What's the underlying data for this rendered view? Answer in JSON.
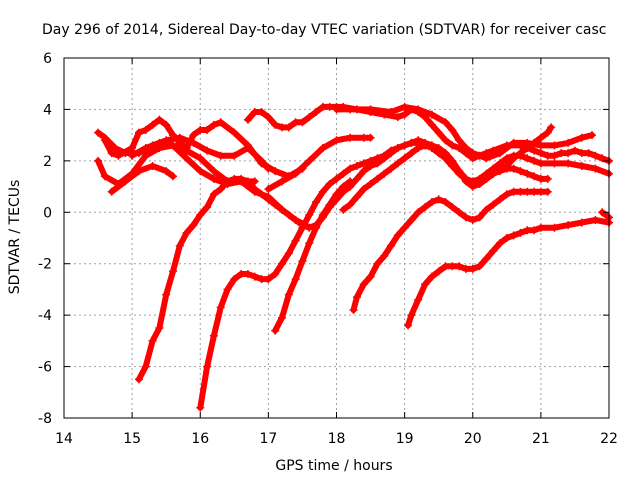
{
  "chart_data": {
    "type": "scatter",
    "title": "Day 296 of 2014, Sidereal Day-to-day VTEC variation (SDTVAR) for receiver casc",
    "xlabel": "GPS time / hours",
    "ylabel": "SDTVAR / TECUs",
    "xlim": [
      14,
      22
    ],
    "ylim": [
      -8,
      6
    ],
    "xticks": [
      14,
      15,
      16,
      17,
      18,
      19,
      20,
      21,
      22
    ],
    "yticks": [
      -8,
      -6,
      -4,
      -2,
      0,
      2,
      4,
      6
    ],
    "grid": true,
    "marker": "+",
    "color": "#ff0000",
    "series": [
      {
        "name": "s1",
        "x": [
          14.5,
          14.6,
          14.75,
          14.9,
          15.1,
          15.3,
          15.5,
          15.7,
          15.9,
          16.1,
          16.3,
          16.5,
          16.7,
          16.9,
          17.0
        ],
        "y": [
          3.1,
          2.9,
          2.5,
          2.3,
          2.3,
          2.6,
          2.8,
          2.9,
          2.7,
          2.4,
          2.2,
          2.2,
          2.5,
          2.0,
          1.7
        ]
      },
      {
        "name": "s2",
        "x": [
          14.5,
          14.6,
          14.8,
          15.0,
          15.2,
          15.4,
          15.6,
          15.8,
          16.0,
          16.2,
          16.4,
          16.6,
          16.8
        ],
        "y": [
          2.0,
          1.4,
          1.1,
          1.5,
          2.2,
          2.5,
          2.6,
          2.4,
          2.1,
          1.6,
          1.2,
          1.2,
          1.2
        ]
      },
      {
        "name": "s3",
        "x": [
          14.7,
          14.9,
          15.1,
          15.3,
          15.5,
          15.6
        ],
        "y": [
          0.8,
          1.2,
          1.6,
          1.8,
          1.6,
          1.4
        ]
      },
      {
        "name": "s4",
        "x": [
          14.6,
          14.7,
          14.8,
          15.0,
          15.1,
          15.2,
          15.3,
          15.4,
          15.5,
          15.6,
          15.7,
          15.8,
          15.9,
          16.0,
          16.1,
          16.2,
          16.3,
          16.5,
          16.7,
          16.9,
          17.1,
          17.3,
          17.5
        ],
        "y": [
          2.8,
          2.3,
          2.2,
          2.5,
          3.1,
          3.2,
          3.4,
          3.6,
          3.4,
          3.0,
          2.7,
          2.5,
          3.0,
          3.2,
          3.2,
          3.4,
          3.5,
          3.1,
          2.6,
          1.9,
          1.6,
          1.4,
          1.7
        ]
      },
      {
        "name": "s5",
        "x": [
          15.0,
          15.2,
          15.4,
          15.6,
          15.8,
          16.0,
          16.2,
          16.4,
          16.6,
          16.8,
          17.0,
          17.2,
          17.4,
          17.55
        ],
        "y": [
          2.2,
          2.5,
          2.7,
          2.6,
          2.1,
          1.6,
          1.3,
          1.1,
          1.2,
          0.8,
          0.6,
          0.1,
          -0.3,
          -0.5
        ]
      },
      {
        "name": "s6",
        "x": [
          16.7,
          16.8,
          16.9,
          17.0,
          17.1,
          17.2,
          17.3,
          17.4,
          17.5,
          17.6,
          17.7,
          17.8,
          17.9,
          18.0,
          18.1,
          18.3,
          18.5,
          18.7,
          18.9,
          19.0,
          19.1,
          19.2,
          19.3,
          19.4,
          19.5,
          19.6,
          19.7,
          19.8,
          19.9,
          20.0,
          20.1,
          20.2,
          20.3,
          20.5,
          20.7,
          20.9,
          21.0,
          21.1,
          21.2,
          21.3,
          21.4,
          21.5,
          21.6,
          21.7,
          21.8,
          21.9,
          22.0
        ],
        "y": [
          3.6,
          3.9,
          3.9,
          3.7,
          3.4,
          3.3,
          3.3,
          3.5,
          3.5,
          3.7,
          3.9,
          4.1,
          4.1,
          4.1,
          4.1,
          4.0,
          3.9,
          3.8,
          3.7,
          3.8,
          4.0,
          3.9,
          3.7,
          3.4,
          3.1,
          2.8,
          2.6,
          2.5,
          2.3,
          2.1,
          2.2,
          2.3,
          2.4,
          2.6,
          2.6,
          2.4,
          2.3,
          2.2,
          2.2,
          2.3,
          2.3,
          2.4,
          2.3,
          2.3,
          2.2,
          2.1,
          2.0
        ]
      },
      {
        "name": "s7",
        "x": [
          17.0,
          17.2,
          17.4,
          17.6,
          17.8,
          18.0,
          18.2,
          18.4,
          18.5
        ],
        "y": [
          0.9,
          1.2,
          1.5,
          2.0,
          2.5,
          2.8,
          2.9,
          2.9,
          2.9
        ]
      },
      {
        "name": "s8",
        "x": [
          18.0,
          18.2,
          18.5,
          18.8,
          19.0,
          19.2,
          19.4,
          19.6,
          19.7,
          19.8,
          19.9,
          20.0,
          20.2,
          20.4,
          20.6,
          20.8,
          21.0,
          21.2,
          21.4,
          21.6,
          21.75
        ],
        "y": [
          4.0,
          4.0,
          4.0,
          3.9,
          4.1,
          4.0,
          3.8,
          3.5,
          3.2,
          2.8,
          2.5,
          2.3,
          2.1,
          2.3,
          2.7,
          2.7,
          2.6,
          2.6,
          2.7,
          2.9,
          3.0
        ]
      },
      {
        "name": "s9",
        "x": [
          15.1,
          15.2,
          15.3,
          15.4,
          15.5,
          15.6,
          15.7,
          15.8,
          15.9,
          16.0,
          16.1,
          16.2,
          16.3,
          16.4,
          16.5,
          16.6,
          16.7,
          16.8,
          16.9,
          17.0,
          17.1,
          17.2,
          17.3,
          17.4,
          17.5,
          17.6,
          17.7,
          17.8,
          17.9,
          18.0,
          18.1,
          18.2,
          18.3,
          18.4,
          18.5,
          18.6,
          18.7,
          18.8,
          18.9,
          19.0,
          19.1,
          19.2,
          19.3,
          19.4,
          19.5,
          19.6,
          19.7,
          19.8,
          19.9,
          20.0,
          20.1,
          20.2,
          20.3,
          20.4,
          20.5,
          20.6,
          20.7,
          20.8,
          20.9,
          21.0,
          21.1,
          21.15
        ],
        "y": [
          -6.5,
          -6.0,
          -5.0,
          -4.5,
          -3.2,
          -2.3,
          -1.3,
          -0.8,
          -0.5,
          -0.1,
          0.2,
          0.7,
          0.9,
          1.2,
          1.3,
          1.3,
          1.2,
          0.9,
          0.7,
          0.5,
          0.3,
          0.1,
          -0.1,
          -0.3,
          -0.5,
          -0.6,
          -0.5,
          -0.2,
          0.2,
          0.5,
          0.8,
          1.0,
          1.3,
          1.6,
          1.8,
          1.9,
          2.1,
          2.3,
          2.5,
          2.6,
          2.7,
          2.8,
          2.7,
          2.6,
          2.4,
          2.1,
          1.8,
          1.6,
          1.3,
          1.1,
          1.1,
          1.3,
          1.5,
          1.7,
          1.8,
          2.1,
          2.3,
          2.5,
          2.7,
          2.9,
          3.1,
          3.3
        ]
      },
      {
        "name": "s10",
        "x": [
          16.0,
          16.1,
          16.2,
          16.3,
          16.4,
          16.5,
          16.6,
          16.7,
          16.8,
          16.9,
          17.0,
          17.1,
          17.2,
          17.3,
          17.4,
          17.5,
          17.6,
          17.7,
          17.8,
          17.9,
          18.0,
          18.1,
          18.2,
          18.3,
          18.4,
          18.5,
          18.6,
          18.7,
          18.8,
          18.9,
          19.0,
          19.1,
          19.2,
          19.3,
          19.4,
          19.5,
          19.6,
          19.7,
          19.8,
          19.9,
          20.0,
          20.1,
          20.2,
          20.3,
          20.4,
          20.5,
          20.6,
          20.7,
          20.8,
          20.9,
          21.0,
          21.2,
          21.4,
          21.6,
          21.8,
          22.0
        ],
        "y": [
          -7.6,
          -6.0,
          -4.8,
          -3.7,
          -3.0,
          -2.6,
          -2.4,
          -2.4,
          -2.5,
          -2.6,
          -2.6,
          -2.4,
          -2.0,
          -1.6,
          -1.1,
          -0.6,
          -0.1,
          0.4,
          0.8,
          1.1,
          1.3,
          1.5,
          1.7,
          1.8,
          1.9,
          2.0,
          2.1,
          2.2,
          2.4,
          2.5,
          2.6,
          2.7,
          2.7,
          2.6,
          2.5,
          2.3,
          2.1,
          1.8,
          1.5,
          1.3,
          1.2,
          1.3,
          1.5,
          1.7,
          1.9,
          2.1,
          2.2,
          2.2,
          2.1,
          2.0,
          1.9,
          1.9,
          1.9,
          1.8,
          1.7,
          1.5
        ]
      },
      {
        "name": "s11",
        "x": [
          17.1,
          17.2,
          17.3,
          17.4,
          17.5,
          17.6,
          17.7,
          17.8,
          17.9,
          18.0,
          18.1,
          18.2
        ],
        "y": [
          -4.6,
          -4.1,
          -3.2,
          -2.6,
          -1.9,
          -1.2,
          -0.6,
          -0.1,
          0.3,
          0.7,
          1.0,
          1.2
        ]
      },
      {
        "name": "s12",
        "x": [
          18.1,
          18.2,
          18.3,
          18.4,
          18.5,
          18.6,
          18.7,
          18.8,
          18.9,
          19.0,
          19.1,
          19.2,
          19.3,
          19.4,
          19.5,
          19.6,
          19.7,
          19.8,
          19.9,
          20.0,
          20.1,
          20.2,
          20.3,
          20.4,
          20.5,
          20.6,
          20.7,
          20.8,
          20.9,
          21.0,
          21.1
        ],
        "y": [
          0.1,
          0.3,
          0.6,
          0.9,
          1.1,
          1.3,
          1.5,
          1.7,
          1.9,
          2.1,
          2.3,
          2.5,
          2.6,
          2.6,
          2.5,
          2.3,
          2.0,
          1.6,
          1.2,
          1.0,
          1.1,
          1.3,
          1.5,
          1.6,
          1.7,
          1.7,
          1.6,
          1.5,
          1.4,
          1.3,
          1.3
        ]
      },
      {
        "name": "s13",
        "x": [
          18.25,
          18.3,
          18.4,
          18.5,
          18.6,
          18.7,
          18.8,
          18.9,
          19.0,
          19.1,
          19.2,
          19.3,
          19.4,
          19.5,
          19.6,
          19.7,
          19.8,
          19.9,
          20.0,
          20.1,
          20.2,
          20.3,
          20.4,
          20.5,
          20.6,
          20.7,
          20.8,
          20.9,
          21.0,
          21.1
        ],
        "y": [
          -3.8,
          -3.3,
          -2.8,
          -2.5,
          -2.0,
          -1.7,
          -1.3,
          -0.9,
          -0.6,
          -0.3,
          0.0,
          0.2,
          0.4,
          0.5,
          0.4,
          0.2,
          0.0,
          -0.2,
          -0.3,
          -0.2,
          0.1,
          0.3,
          0.5,
          0.7,
          0.8,
          0.8,
          0.8,
          0.8,
          0.8,
          0.8
        ]
      },
      {
        "name": "s14",
        "x": [
          19.05,
          19.1,
          19.2,
          19.3,
          19.4,
          19.5,
          19.6,
          19.7,
          19.8,
          19.9,
          20.0,
          20.1,
          20.2,
          20.3,
          20.4,
          20.5,
          20.6,
          20.7,
          20.8,
          20.9,
          21.0,
          21.2,
          21.4,
          21.6,
          21.8,
          22.0
        ],
        "y": [
          -4.4,
          -4.0,
          -3.4,
          -2.8,
          -2.5,
          -2.3,
          -2.1,
          -2.1,
          -2.1,
          -2.2,
          -2.2,
          -2.1,
          -1.8,
          -1.5,
          -1.2,
          -1.0,
          -0.9,
          -0.8,
          -0.7,
          -0.7,
          -0.6,
          -0.6,
          -0.5,
          -0.4,
          -0.3,
          -0.4
        ]
      },
      {
        "name": "s15",
        "x": [
          21.9,
          22.0
        ],
        "y": [
          0.0,
          -0.2
        ]
      }
    ]
  }
}
